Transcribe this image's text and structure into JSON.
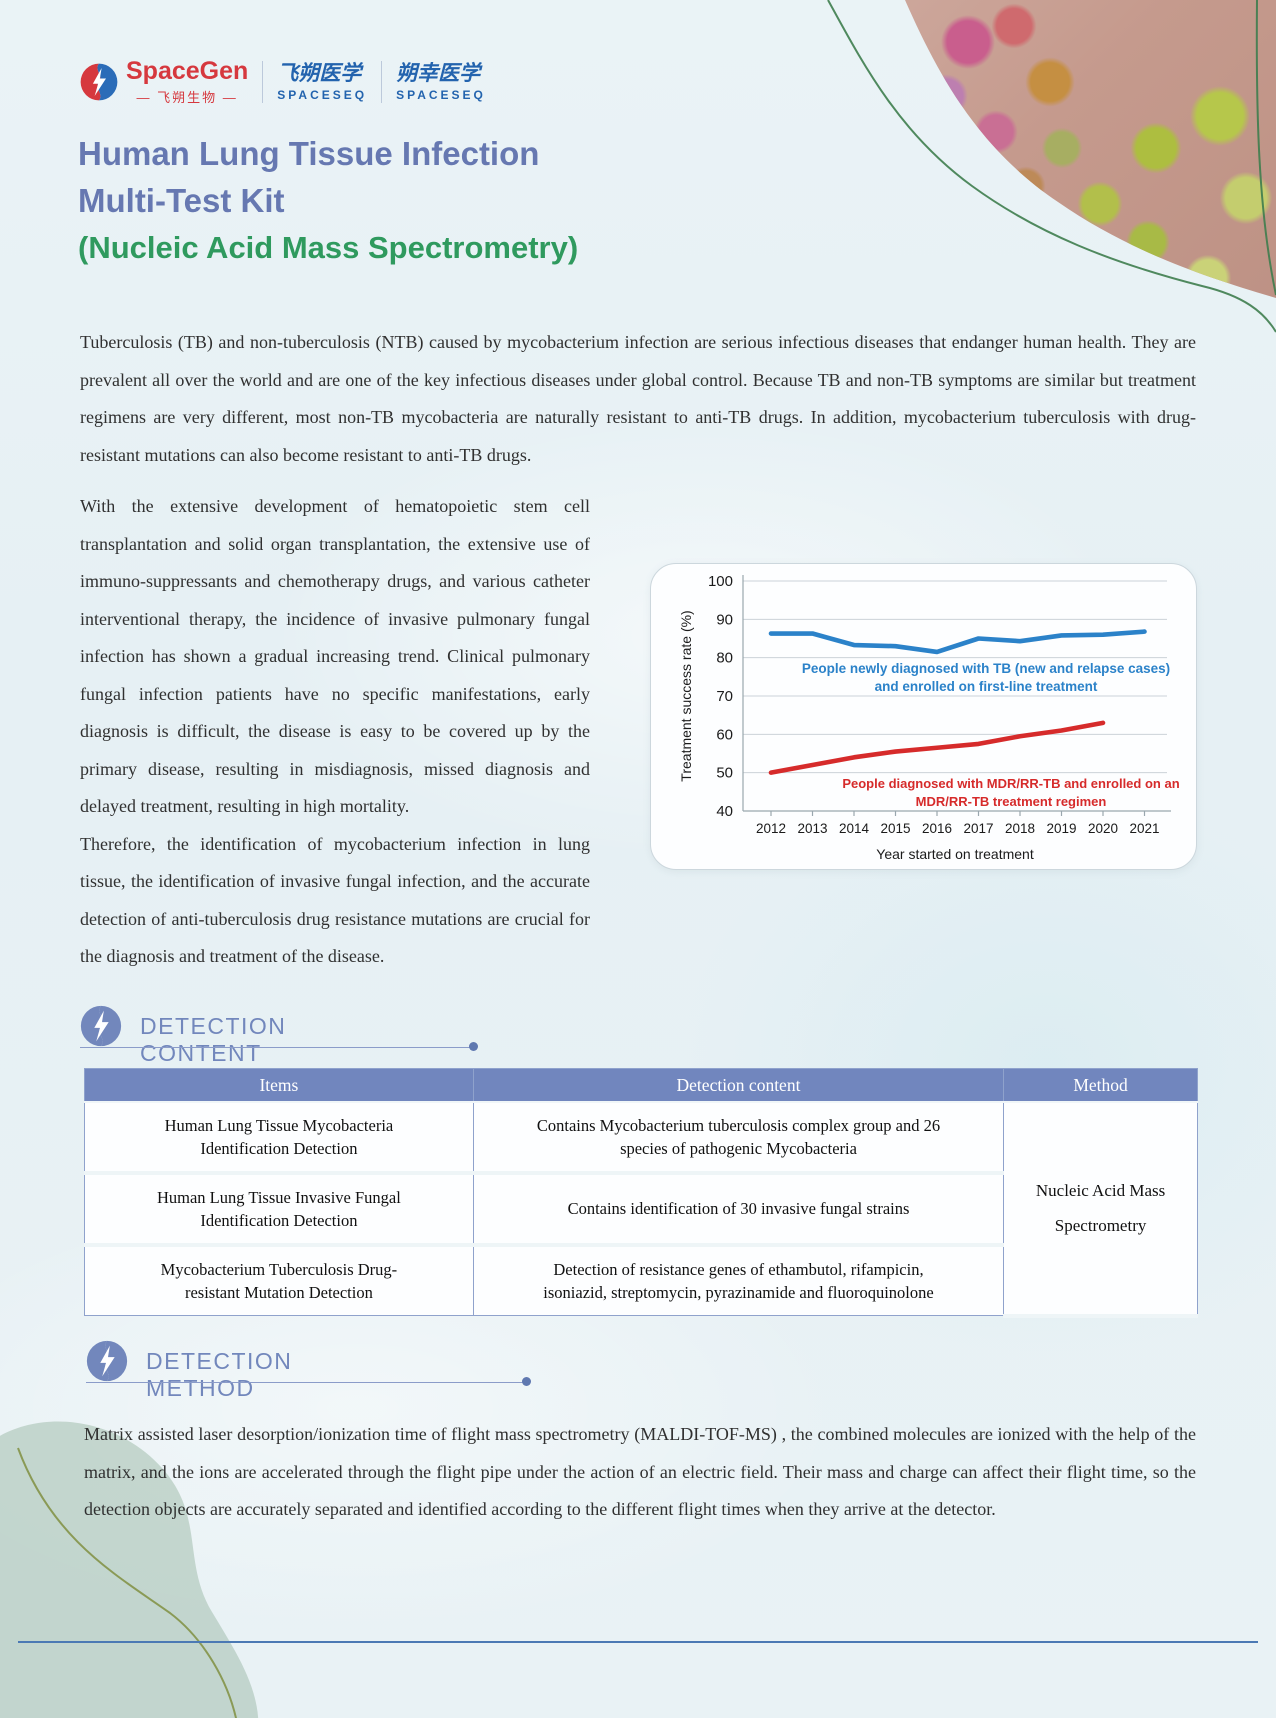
{
  "theme": {
    "accent": "#7287bc",
    "title_blue": "#6678b1",
    "title_green": "#2f9a5e",
    "brand_red": "#d6383e",
    "brand_blue": "#2363ae",
    "table_header_bg": "#7186be",
    "table_border": "#8fa2cc",
    "footer_line": "#4b79b4"
  },
  "header": {
    "logo": {
      "name": "SpaceGen",
      "subname": "— 飞朔生物 —"
    },
    "brands": [
      {
        "cn": "飞朔医学",
        "en": "SPACESEQ"
      },
      {
        "cn": "朔幸医学",
        "en": "SPACESEQ"
      }
    ]
  },
  "title": {
    "line1": "Human Lung Tissue Infection",
    "line2": "Multi-Test Kit",
    "line3": "(Nucleic Acid Mass Spectrometry)"
  },
  "intro": "Tuberculosis (TB) and non-tuberculosis (NTB) caused by mycobacterium infection are serious infectious diseases that endanger human health. They are prevalent all over the world and are one of the key infectious diseases under global control. Because TB and non-TB symptoms are similar but treatment regimens are very different, most non-TB mycobacteria are naturally resistant to anti-TB drugs. In addition, mycobacterium tuberculosis with drug-resistant mutations can also become resistant to anti-TB drugs.",
  "body": {
    "para1": "With the extensive development of hematopoietic stem cell transplantation and solid organ transplantation, the extensive use of immuno-suppressants and chemotherapy drugs, and various catheter interventional therapy, the incidence of invasive pulmonary fungal infection has shown a gradual increasing trend. Clinical pulmonary fungal infection patients have no specific manifestations, early diagnosis is difficult, the disease is easy to be covered up by the primary disease, resulting in misdiagnosis, missed diagnosis and delayed treatment, resulting in high mortality.",
    "para2": "Therefore, the identification of mycobacterium infection in lung tissue, the identification of invasive fungal infection, and the accurate detection of anti-tuberculosis drug resistance mutations are crucial for the diagnosis and treatment of the disease."
  },
  "chart_data": {
    "type": "line",
    "x": [
      2012,
      2013,
      2014,
      2015,
      2016,
      2017,
      2018,
      2019,
      2020,
      2021
    ],
    "series": [
      {
        "name": "People newly diagnosed with TB (new and relapse cases) and enrolled on first-line treatment",
        "color": "#2b82c9",
        "values": [
          86.3,
          86.3,
          83.3,
          83,
          81.5,
          85,
          84.3,
          85.8,
          86,
          86.8
        ]
      },
      {
        "name": "People diagnosed with MDR/RR-TB and enrolled on an MDR/RR-TB treatment regimen",
        "color": "#d62b2b",
        "values": [
          50,
          52,
          54,
          55.5,
          56.5,
          57.5,
          59.5,
          61,
          63
        ]
      }
    ],
    "ylabel": "Treatment success rate (%)",
    "xlabel": "Year started on treatment",
    "ylim": [
      40,
      100
    ],
    "yticks": [
      100,
      90,
      80,
      70,
      60,
      50,
      40
    ],
    "grid": true,
    "legend_position": "inline-labels"
  },
  "sections": [
    {
      "label": "DETECTION CONTENT"
    },
    {
      "label": "DETECTION METHOD"
    }
  ],
  "table": {
    "headers": [
      "Items",
      "Detection content",
      "Method"
    ],
    "rows": [
      {
        "item": "Human Lung Tissue Mycobacteria Identification Detection",
        "content": "Contains Mycobacterium tuberculosis complex group and 26 species of pathogenic Mycobacteria"
      },
      {
        "item": "Human Lung Tissue Invasive Fungal Identification Detection",
        "content": "Contains identification of 30 invasive fungal strains"
      },
      {
        "item": "Mycobacterium Tuberculosis Drug-resistant Mutation Detection",
        "content": "Detection of resistance genes of ethambutol, rifampicin, isoniazid, streptomycin, pyrazinamide and fluoroquinolone"
      }
    ],
    "method": "Nucleic Acid Mass Spectrometry"
  },
  "method_text": "Matrix assisted laser desorption/ionization time of flight mass spectrometry (MALDI-TOF-MS) , the combined molecules are ionized with the help of the matrix, and the ions are accelerated through the flight pipe under the action of an electric field. Their mass and charge can affect their flight time, so the detection objects are accurately separated and identified according to the different flight times when they arrive at the detector."
}
